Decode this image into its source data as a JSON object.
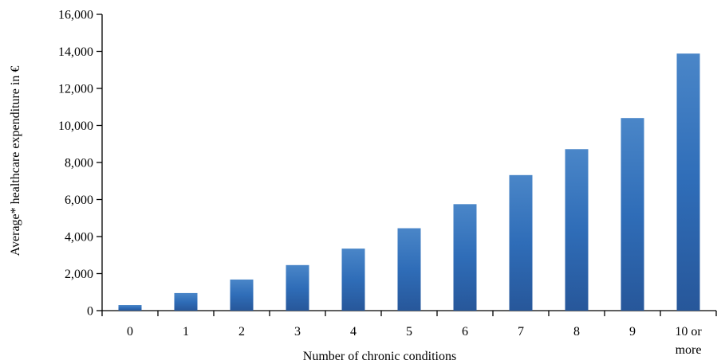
{
  "chart_data": {
    "type": "bar",
    "title": "",
    "xlabel": "Number of chronic conditions",
    "ylabel": "Average* healthcare expenditure in €",
    "categories": [
      [
        "0"
      ],
      [
        "1"
      ],
      [
        "2"
      ],
      [
        "3"
      ],
      [
        "4"
      ],
      [
        "5"
      ],
      [
        "6"
      ],
      [
        "7"
      ],
      [
        "8"
      ],
      [
        "9"
      ],
      [
        "10 or",
        "more"
      ]
    ],
    "values": [
      300,
      950,
      1680,
      2460,
      3350,
      4450,
      5750,
      7320,
      8720,
      10400,
      13880
    ],
    "ylim": [
      0,
      16000
    ],
    "yticks": [
      0,
      2000,
      4000,
      6000,
      8000,
      10000,
      12000,
      14000,
      16000
    ],
    "ytick_labels": [
      "0",
      "2,000",
      "4,000",
      "6,000",
      "8,000",
      "10,000",
      "12,000",
      "14,000",
      "16,000"
    ],
    "grid": false,
    "legend": "none",
    "colors": {
      "bar_light": "#4a86c8",
      "bar_mid": "#2f6db8",
      "bar_dark": "#27579a",
      "axis": "#000000"
    }
  }
}
